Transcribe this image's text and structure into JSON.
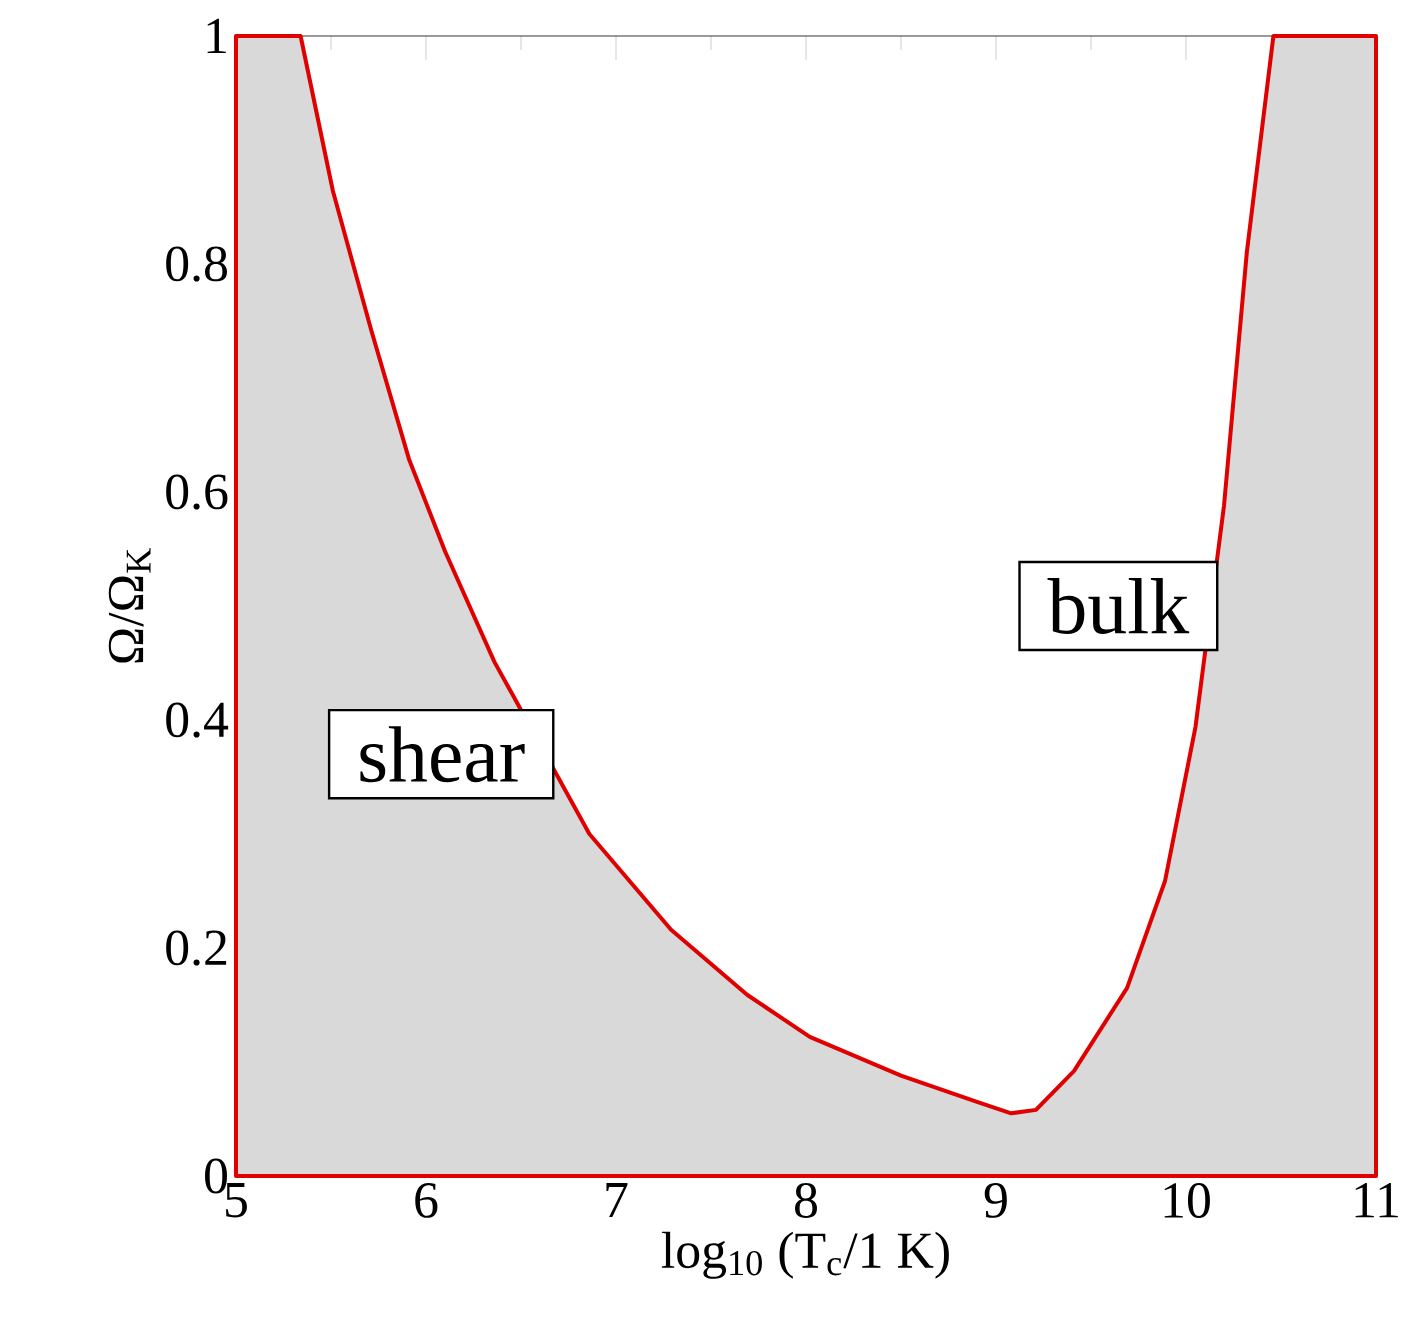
{
  "chart_data": {
    "type": "area",
    "xlabel": "log$_{10}$ (T$_{c}$/1 K)",
    "ylabel": "Ω/Ω$_{K}$",
    "xlim": [
      5,
      11
    ],
    "ylim": [
      0,
      1
    ],
    "xticks": [
      5,
      6,
      7,
      8,
      9,
      10,
      11
    ],
    "yticks": [
      0,
      0.2,
      0.4,
      0.6,
      0.8,
      1
    ],
    "x": [
      5,
      5.34,
      5.51,
      5.71,
      5.91,
      6.1,
      6.36,
      6.86,
      7.29,
      7.69,
      8.02,
      8.5,
      8.9,
      9.08,
      9.21,
      9.41,
      9.69,
      9.89,
      10.05,
      10.2,
      10.32,
      10.46,
      11
    ],
    "series": [
      {
        "color": "#d9d9d9",
        "values": [
          1,
          1,
          0.864,
          0.743,
          0.629,
          0.548,
          0.451,
          0.3,
          0.216,
          0.159,
          0.122,
          0.088,
          0.065,
          0.055,
          0.058,
          0.092,
          0.165,
          0.259,
          0.394,
          0.588,
          0.81,
          1,
          1
        ]
      }
    ],
    "annotations": [
      "shear",
      "bulk"
    ]
  }
}
